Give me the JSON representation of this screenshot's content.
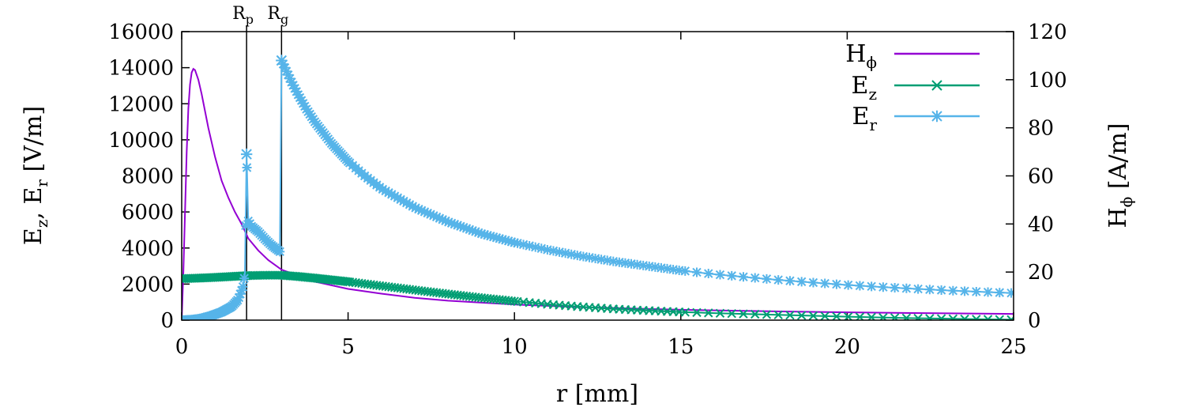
{
  "chart_data": {
    "type": "line",
    "xlabel": "r [mm]",
    "ylabel_left": {
      "main": "E",
      "sub1": "z",
      "mid": ", E",
      "sub2": "r",
      "tail": " [V/m]"
    },
    "ylabel_right": {
      "main": "H",
      "sub": "ϕ",
      "tail": " [A/m]"
    },
    "xlim": [
      0,
      25
    ],
    "ylim_left": [
      0,
      16000
    ],
    "ylim_right": [
      0,
      120
    ],
    "x_ticks": [
      0,
      5,
      10,
      15,
      20,
      25
    ],
    "y_left_ticks": [
      0,
      2000,
      4000,
      6000,
      8000,
      10000,
      12000,
      14000,
      16000
    ],
    "y_right_ticks": [
      0,
      20,
      40,
      60,
      80,
      100,
      120
    ],
    "legend_position": "top-right",
    "vertical_markers": [
      {
        "x": 1.95,
        "main": "R",
        "sub": "p"
      },
      {
        "x": 3.0,
        "main": "R",
        "sub": "g"
      }
    ],
    "series": [
      {
        "name": "H",
        "name_sub": "ϕ",
        "axis": "right",
        "color": "#9400d3",
        "marker": "none",
        "points": [
          [
            0,
            0
          ],
          [
            0.05,
            20
          ],
          [
            0.1,
            45
          ],
          [
            0.15,
            70
          ],
          [
            0.2,
            88
          ],
          [
            0.25,
            98
          ],
          [
            0.3,
            103
          ],
          [
            0.35,
            104.5
          ],
          [
            0.4,
            104
          ],
          [
            0.5,
            100
          ],
          [
            0.6,
            94
          ],
          [
            0.7,
            87
          ],
          [
            0.8,
            80
          ],
          [
            1.0,
            68
          ],
          [
            1.2,
            58
          ],
          [
            1.4,
            51
          ],
          [
            1.6,
            45
          ],
          [
            1.8,
            40
          ],
          [
            2.0,
            34
          ],
          [
            2.3,
            29
          ],
          [
            2.6,
            25
          ],
          [
            3.0,
            21
          ],
          [
            3.5,
            18.5
          ],
          [
            4,
            16
          ],
          [
            5,
            13
          ],
          [
            6,
            11
          ],
          [
            7,
            9.3
          ],
          [
            8,
            8.1
          ],
          [
            10,
            6.5
          ],
          [
            12,
            5.4
          ],
          [
            15,
            4.3
          ],
          [
            18,
            3.6
          ],
          [
            20,
            3.25
          ],
          [
            22,
            2.95
          ],
          [
            25,
            2.6
          ]
        ]
      },
      {
        "name": "E",
        "name_sub": "z",
        "axis": "left",
        "color": "#009e73",
        "marker": "x",
        "points": [
          [
            0,
            2300
          ],
          [
            0.5,
            2330
          ],
          [
            1,
            2370
          ],
          [
            1.5,
            2420
          ],
          [
            2,
            2470
          ],
          [
            2.5,
            2490
          ],
          [
            3,
            2490
          ],
          [
            3.5,
            2420
          ],
          [
            4,
            2330
          ],
          [
            5,
            2130
          ],
          [
            6,
            1900
          ],
          [
            7,
            1670
          ],
          [
            8,
            1450
          ],
          [
            9,
            1240
          ],
          [
            10,
            1050
          ],
          [
            11,
            880
          ],
          [
            12,
            740
          ],
          [
            13,
            620
          ],
          [
            14,
            530
          ],
          [
            15,
            450
          ],
          [
            16,
            390
          ],
          [
            17,
            340
          ],
          [
            18,
            290
          ],
          [
            19,
            240
          ],
          [
            20,
            190
          ],
          [
            21,
            150
          ],
          [
            22,
            110
          ],
          [
            23,
            80
          ],
          [
            24,
            50
          ],
          [
            25,
            25
          ]
        ]
      },
      {
        "name": "E",
        "name_sub": "r",
        "axis": "left",
        "color": "#56b4e9",
        "marker": "star",
        "points": [
          [
            0,
            0
          ],
          [
            0.3,
            30
          ],
          [
            0.6,
            100
          ],
          [
            0.9,
            250
          ],
          [
            1.2,
            450
          ],
          [
            1.5,
            750
          ],
          [
            1.7,
            1150
          ],
          [
            1.85,
            1900
          ],
          [
            1.9,
            2600
          ],
          [
            1.95,
            9200
          ],
          [
            2.0,
            5500
          ],
          [
            2.1,
            5200
          ],
          [
            2.3,
            4900
          ],
          [
            2.5,
            4500
          ],
          [
            2.7,
            4150
          ],
          [
            2.95,
            3800
          ],
          [
            3.0,
            14400
          ],
          [
            3.1,
            14000
          ],
          [
            3.3,
            13200
          ],
          [
            3.5,
            12500
          ],
          [
            3.75,
            11700
          ],
          [
            4,
            11000
          ],
          [
            4.5,
            9800
          ],
          [
            5,
            8800
          ],
          [
            5.5,
            8000
          ],
          [
            6,
            7300
          ],
          [
            7,
            6250
          ],
          [
            8,
            5450
          ],
          [
            9,
            4800
          ],
          [
            10,
            4300
          ],
          [
            11,
            3900
          ],
          [
            12,
            3550
          ],
          [
            13,
            3250
          ],
          [
            14,
            3000
          ],
          [
            15,
            2750
          ],
          [
            16,
            2550
          ],
          [
            17,
            2380
          ],
          [
            18,
            2220
          ],
          [
            19,
            2080
          ],
          [
            20,
            1950
          ],
          [
            21,
            1840
          ],
          [
            22,
            1740
          ],
          [
            23,
            1650
          ],
          [
            24,
            1570
          ],
          [
            25,
            1500
          ]
        ]
      }
    ]
  }
}
